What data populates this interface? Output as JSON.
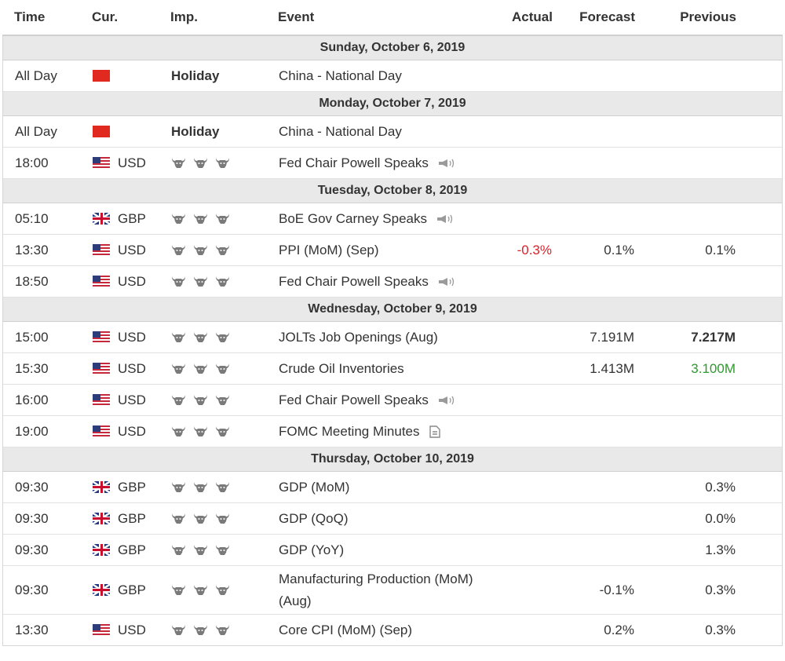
{
  "header": {
    "time": "Time",
    "currency": "Cur.",
    "importance": "Imp.",
    "event": "Event",
    "actual": "Actual",
    "forecast": "Forecast",
    "previous": "Previous"
  },
  "colors": {
    "negative": "#e0202a",
    "positive": "#2f9a2f",
    "date_row_bg": "#e9e9e9"
  },
  "days": [
    {
      "date": "Sunday, October 6, 2019",
      "events": [
        {
          "time": "All Day",
          "flag": "cn-flag-icon",
          "currency": "",
          "importance": "Holiday",
          "event": "China - National Day",
          "actual": "",
          "forecast": "",
          "previous": ""
        }
      ]
    },
    {
      "date": "Monday, October 7, 2019",
      "events": [
        {
          "time": "All Day",
          "flag": "cn-flag-icon",
          "currency": "",
          "importance": "Holiday",
          "event": "China - National Day",
          "actual": "",
          "forecast": "",
          "previous": ""
        },
        {
          "time": "18:00",
          "flag": "us-flag-icon",
          "currency": "USD",
          "importance_level": 3,
          "event": "Fed Chair Powell Speaks",
          "icon": "speech-icon",
          "actual": "",
          "forecast": "",
          "previous": ""
        }
      ]
    },
    {
      "date": "Tuesday, October 8, 2019",
      "events": [
        {
          "time": "05:10",
          "flag": "gb-flag-icon",
          "currency": "GBP",
          "importance_level": 3,
          "event": "BoE Gov Carney Speaks",
          "icon": "speech-icon",
          "actual": "",
          "forecast": "",
          "previous": ""
        },
        {
          "time": "13:30",
          "flag": "us-flag-icon",
          "currency": "USD",
          "importance_level": 3,
          "event": "PPI (MoM) (Sep)",
          "actual": "-0.3%",
          "actual_tone": "negative",
          "forecast": "0.1%",
          "previous": "0.1%"
        },
        {
          "time": "18:50",
          "flag": "us-flag-icon",
          "currency": "USD",
          "importance_level": 3,
          "event": "Fed Chair Powell Speaks",
          "icon": "speech-icon",
          "actual": "",
          "forecast": "",
          "previous": ""
        }
      ]
    },
    {
      "date": "Wednesday, October 9, 2019",
      "events": [
        {
          "time": "15:00",
          "flag": "us-flag-icon",
          "currency": "USD",
          "importance_level": 3,
          "event": "JOLTs Job Openings (Aug)",
          "actual": "",
          "forecast": "7.191M",
          "previous": "7.217M",
          "previous_tone": "bold"
        },
        {
          "time": "15:30",
          "flag": "us-flag-icon",
          "currency": "USD",
          "importance_level": 3,
          "event": "Crude Oil Inventories",
          "actual": "",
          "forecast": "1.413M",
          "previous": "3.100M",
          "previous_tone": "positive"
        },
        {
          "time": "16:00",
          "flag": "us-flag-icon",
          "currency": "USD",
          "importance_level": 3,
          "event": "Fed Chair Powell Speaks",
          "icon": "speech-icon",
          "actual": "",
          "forecast": "",
          "previous": ""
        },
        {
          "time": "19:00",
          "flag": "us-flag-icon",
          "currency": "USD",
          "importance_level": 3,
          "event": "FOMC Meeting Minutes",
          "icon": "document-icon",
          "actual": "",
          "forecast": "",
          "previous": ""
        }
      ]
    },
    {
      "date": "Thursday, October 10, 2019",
      "events": [
        {
          "time": "09:30",
          "flag": "gb-flag-icon",
          "currency": "GBP",
          "importance_level": 3,
          "event": "GDP (MoM)",
          "actual": "",
          "forecast": "",
          "previous": "0.3%"
        },
        {
          "time": "09:30",
          "flag": "gb-flag-icon",
          "currency": "GBP",
          "importance_level": 3,
          "event": "GDP (QoQ)",
          "actual": "",
          "forecast": "",
          "previous": "0.0%"
        },
        {
          "time": "09:30",
          "flag": "gb-flag-icon",
          "currency": "GBP",
          "importance_level": 3,
          "event": "GDP (YoY)",
          "actual": "",
          "forecast": "",
          "previous": "1.3%"
        },
        {
          "time": "09:30",
          "flag": "gb-flag-icon",
          "currency": "GBP",
          "importance_level": 3,
          "event": "Manufacturing Production (MoM) (Aug)",
          "actual": "",
          "forecast": "-0.1%",
          "previous": "0.3%",
          "tall": true
        },
        {
          "time": "13:30",
          "flag": "us-flag-icon",
          "currency": "USD",
          "importance_level": 3,
          "event": "Core CPI (MoM) (Sep)",
          "actual": "",
          "forecast": "0.2%",
          "previous": "0.3%"
        }
      ]
    }
  ]
}
